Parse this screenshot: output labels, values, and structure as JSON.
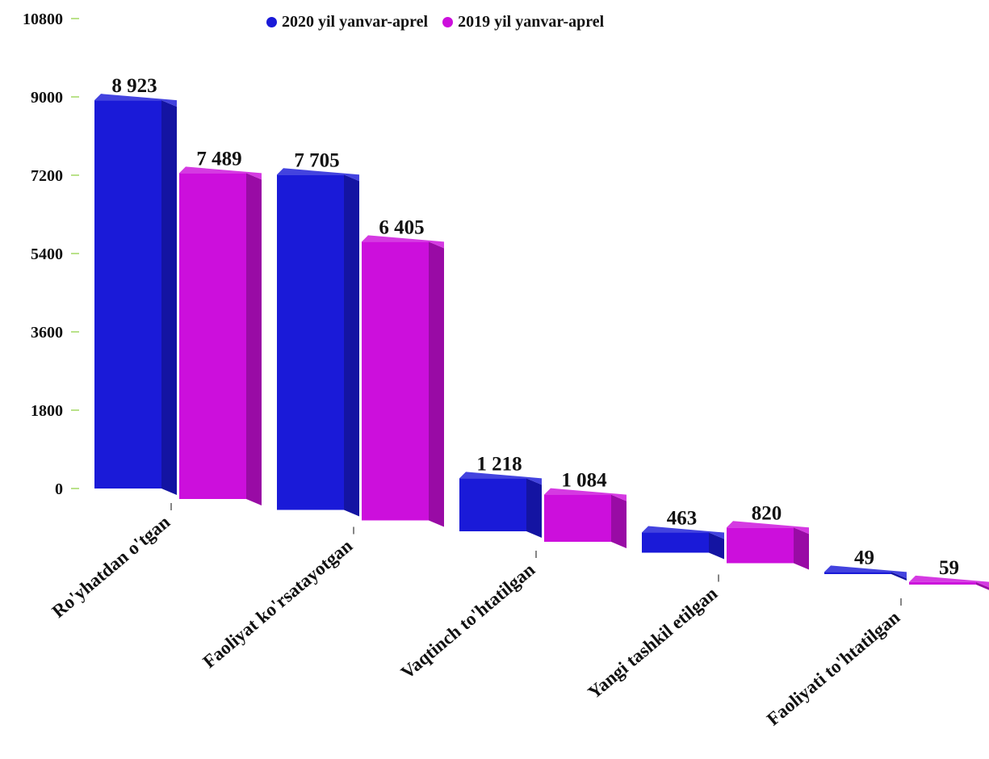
{
  "chart_data": {
    "type": "bar",
    "title": "",
    "xlabel": "",
    "ylabel": "",
    "ylim": [
      0,
      10800
    ],
    "yticks": [
      0,
      1800,
      3600,
      5400,
      7200,
      9000,
      10800
    ],
    "grid": false,
    "legend_position": "top-center",
    "categories": [
      "Ro'yhatdan o'tgan",
      "Faoliyat ko'rsatayotgan",
      "Vaqtinch to'htatilgan",
      "Yangi tashkil etilgan",
      "Faoliyati to'htatilgan"
    ],
    "series": [
      {
        "name": "2020 yil yanvar-aprel",
        "color": "#1a1ad8",
        "values": [
          8923,
          7705,
          1218,
          463,
          49
        ],
        "labels": [
          "8 923",
          "7 705",
          "1 218",
          "463",
          "49"
        ]
      },
      {
        "name": "2019 yil yanvar-aprel",
        "color": "#cc0fdc",
        "values": [
          7489,
          6405,
          1084,
          820,
          59
        ],
        "labels": [
          "7 489",
          "6 405",
          "1 084",
          "820",
          "59"
        ]
      }
    ]
  }
}
